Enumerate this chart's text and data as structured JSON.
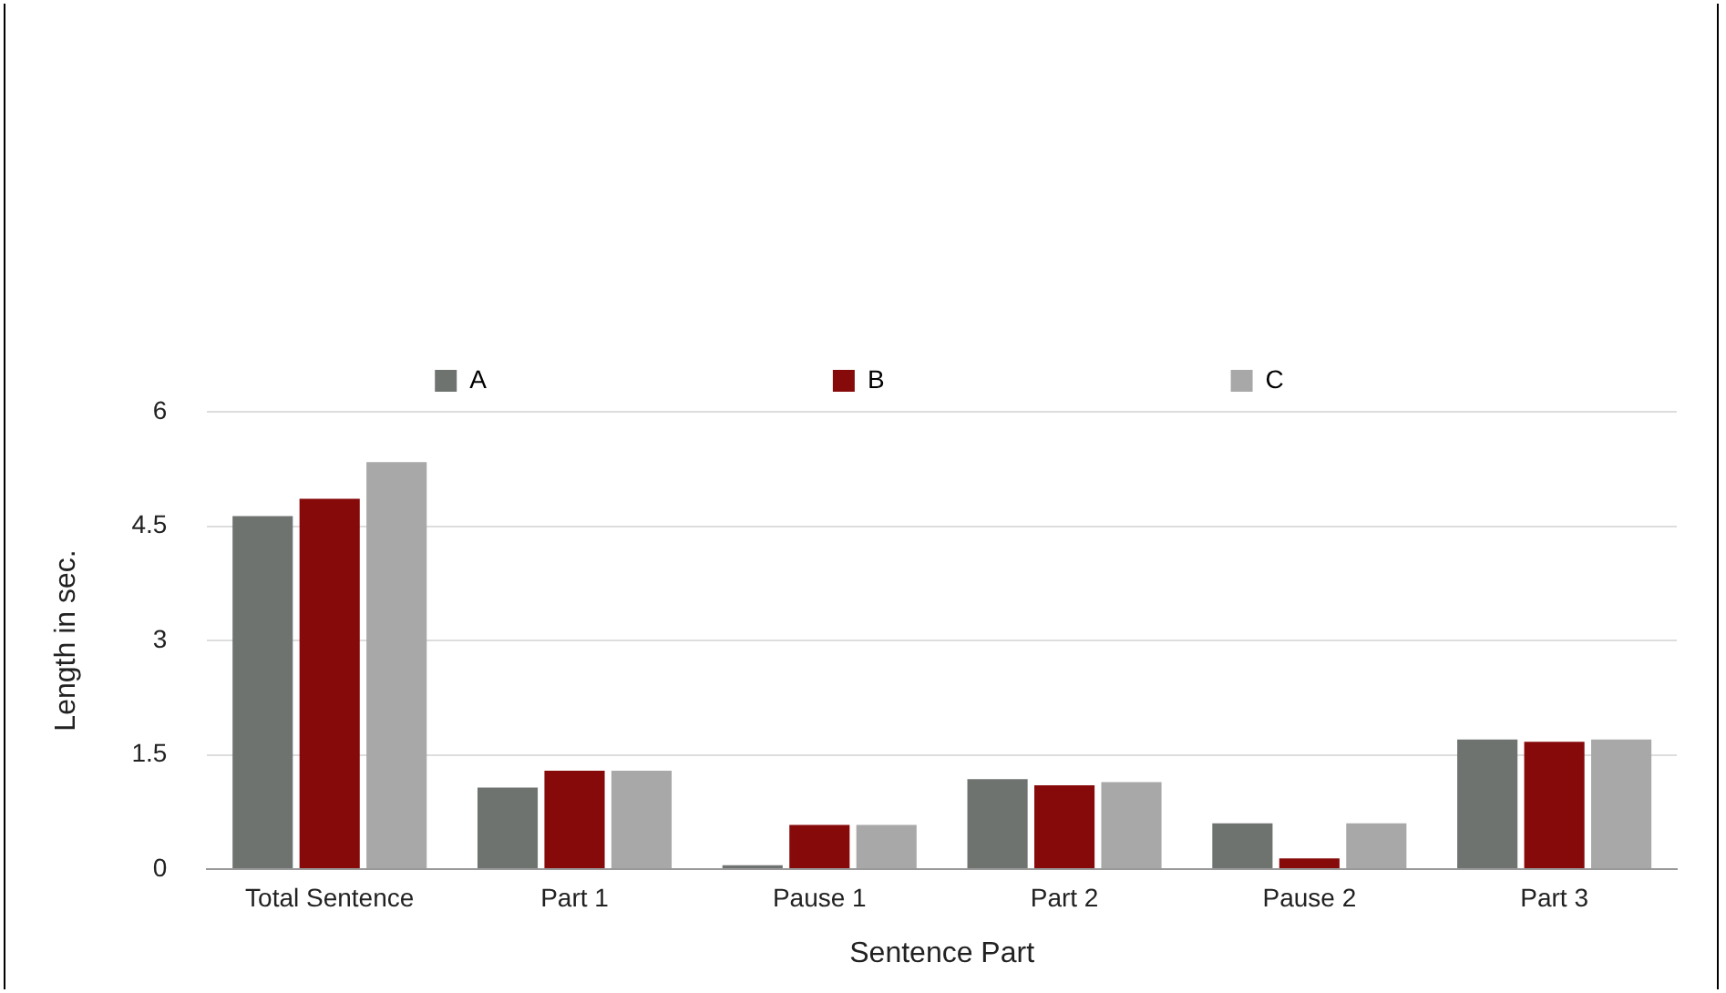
{
  "chart_data": {
    "type": "bar",
    "xlabel": "Sentence Part",
    "ylabel": "Length in sec.",
    "categories": [
      "Total Sentence",
      "Part 1",
      "Pause 1",
      "Part 2",
      "Pause 2",
      "Part 3"
    ],
    "series": [
      {
        "name": "A",
        "color": "#6f7370",
        "values": [
          4.63,
          1.07,
          0.05,
          1.18,
          0.6,
          1.7
        ]
      },
      {
        "name": "B",
        "color": "#870a0a",
        "values": [
          4.86,
          1.29,
          0.58,
          1.1,
          0.14,
          1.67
        ]
      },
      {
        "name": "C",
        "color": "#a8a8a8",
        "values": [
          5.34,
          1.29,
          0.58,
          1.14,
          0.6,
          1.7
        ]
      }
    ],
    "ylim": [
      0,
      6
    ],
    "yticks": [
      0,
      1.5,
      3,
      4.5,
      6
    ],
    "grid": "y",
    "legend": "top"
  }
}
